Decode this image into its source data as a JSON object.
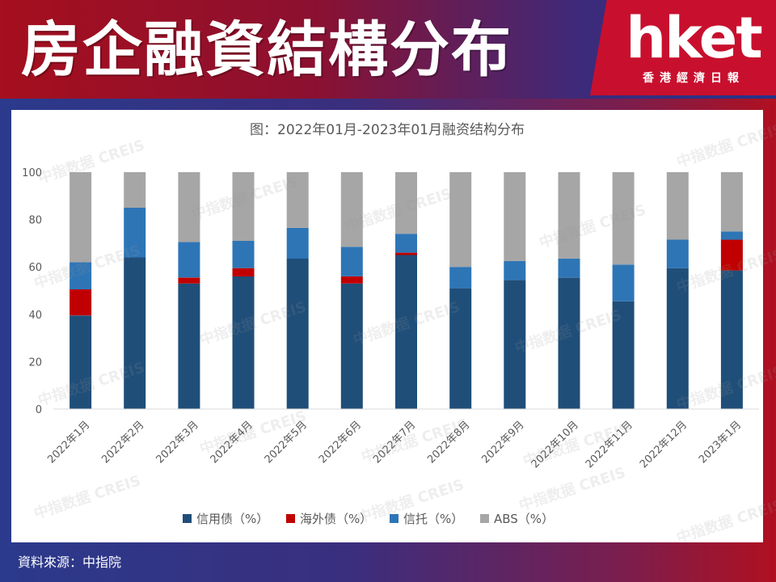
{
  "header": {
    "title": "房企融資結構分布",
    "logo_main": "hket",
    "logo_sub": "香港經濟日報"
  },
  "watermark_text": "中指数据 CREIS",
  "footer": {
    "source": "資料來源：中指院"
  },
  "colors": {
    "credit_bond": "#1f4e79",
    "overseas_bond": "#c00000",
    "trust": "#2e75b6",
    "abs": "#a6a6a6",
    "brand_red": "#c8102e"
  },
  "chart_data": {
    "type": "bar",
    "stacked": true,
    "title": "图：2022年01月-2023年01月融资结构分布",
    "xlabel": "",
    "ylabel": "",
    "ylim": [
      0,
      100
    ],
    "yticks": [
      0,
      20,
      40,
      60,
      80,
      100
    ],
    "grid": false,
    "legend_position": "bottom",
    "categories": [
      "2022年1月",
      "2022年2月",
      "2022年3月",
      "2022年4月",
      "2022年5月",
      "2022年6月",
      "2022年7月",
      "2022年8月",
      "2022年9月",
      "2022年10月",
      "2022年11月",
      "2022年12月",
      "2023年1月"
    ],
    "series": [
      {
        "name": "信用债（%）",
        "color_key": "credit_bond",
        "values": [
          39.5,
          64,
          53,
          56,
          63.5,
          53,
          65,
          51,
          54.5,
          55.5,
          45.5,
          59.5,
          58.5
        ]
      },
      {
        "name": "海外债（%）",
        "color_key": "overseas_bond",
        "values": [
          11,
          0,
          2.5,
          3.5,
          0,
          3,
          1,
          0,
          0,
          0,
          0,
          0,
          13
        ]
      },
      {
        "name": "信托（%）",
        "color_key": "trust",
        "values": [
          11.5,
          21,
          15,
          11.5,
          13,
          12.5,
          8,
          9,
          8,
          8,
          15.5,
          12,
          3.5
        ]
      },
      {
        "name": "ABS（%）",
        "color_key": "abs",
        "values": [
          38,
          15,
          29.5,
          29,
          23.5,
          31.5,
          26,
          40,
          37.5,
          36.5,
          39,
          28.5,
          25
        ]
      }
    ]
  }
}
